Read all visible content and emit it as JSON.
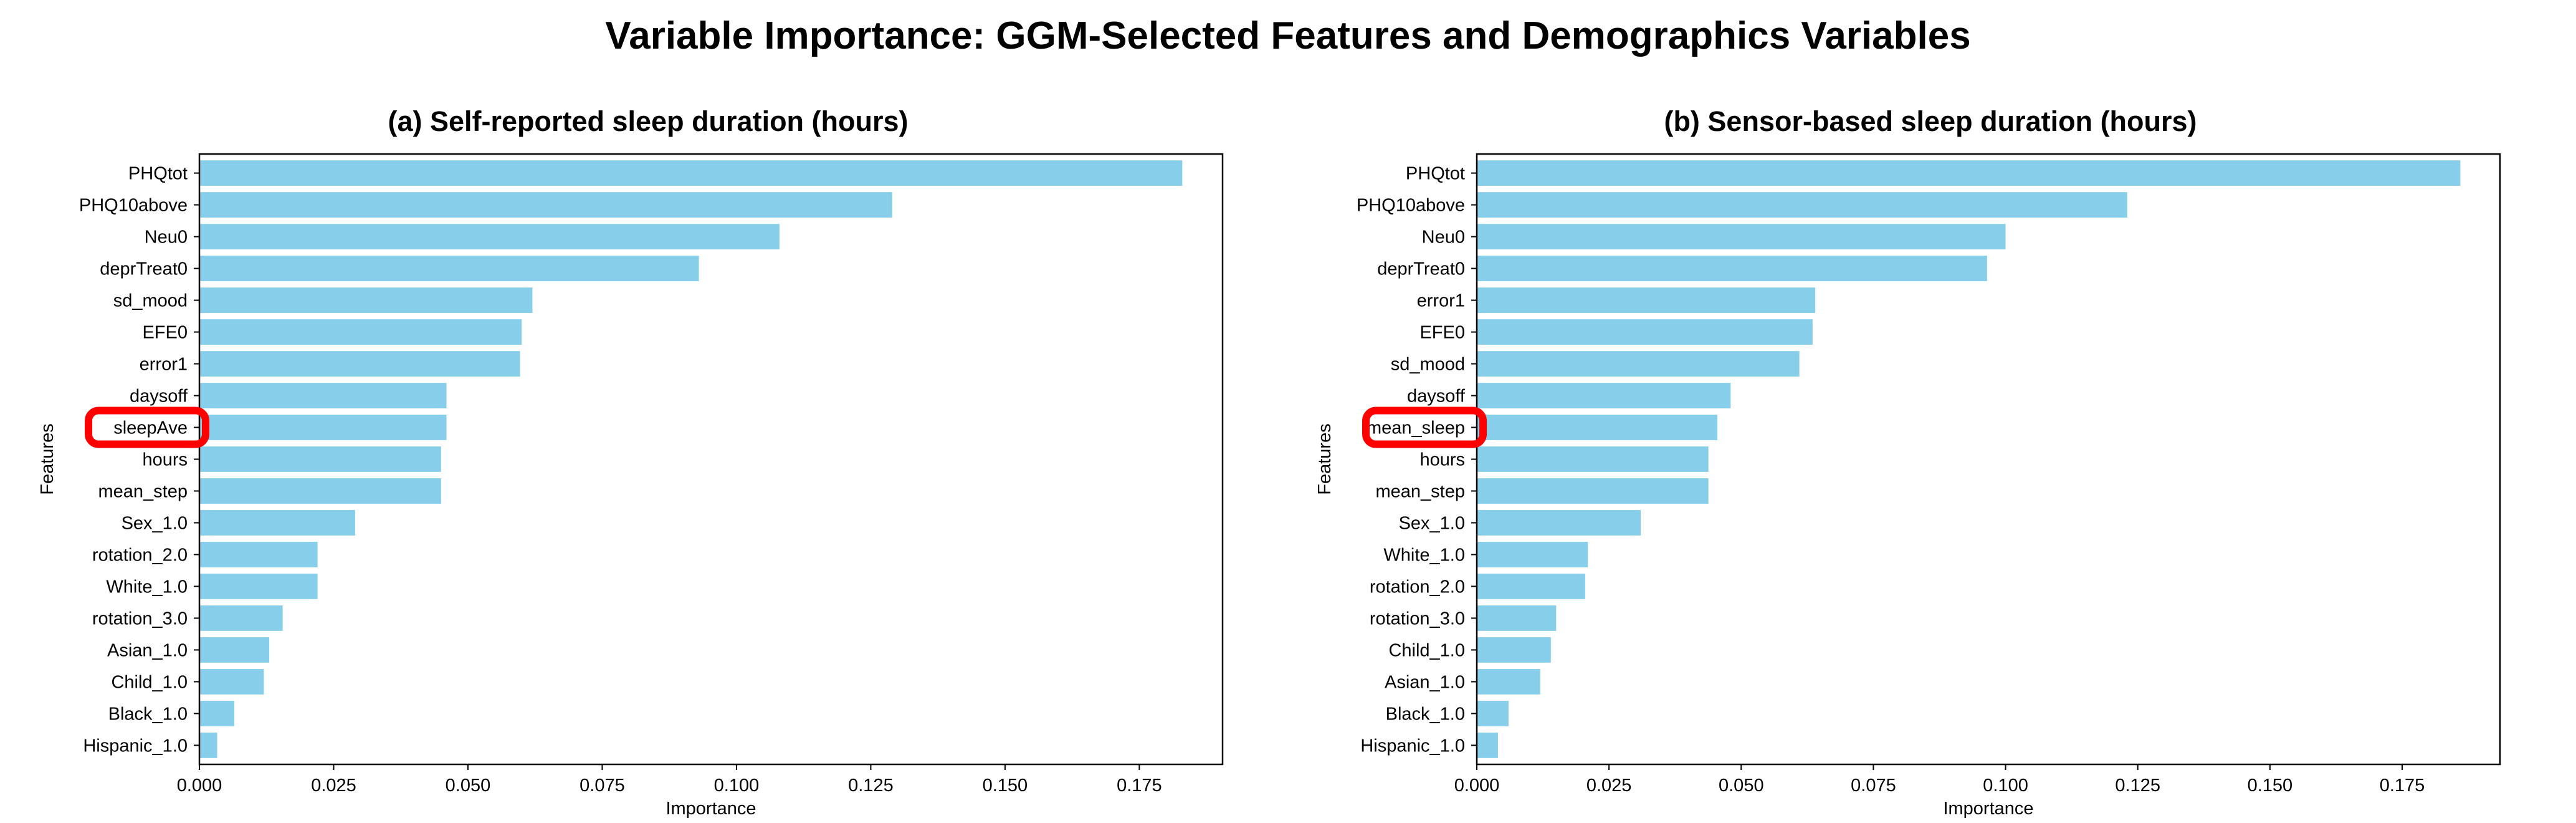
{
  "title": "Variable Importance: GGM-Selected Features and Demographics Variables",
  "colors": {
    "bar": "#87CEEB",
    "highlight": "#ff0000",
    "axis": "#000000"
  },
  "chart_data": [
    {
      "type": "bar",
      "orientation": "horizontal",
      "title": "(a)  Self-reported sleep duration (hours)",
      "xlabel": "Importance",
      "ylabel": "Features",
      "xlim": [
        0,
        0.1905
      ],
      "xticks": [
        0.0,
        0.025,
        0.05,
        0.075,
        0.1,
        0.125,
        0.15,
        0.175
      ],
      "xtick_labels": [
        "0.000",
        "0.025",
        "0.050",
        "0.075",
        "0.100",
        "0.125",
        "0.150",
        "0.175"
      ],
      "categories": [
        "PHQtot",
        "PHQ10above",
        "Neu0",
        "deprTreat0",
        "sd_mood",
        "EFE0",
        "error1",
        "daysoff",
        "sleepAve",
        "hours",
        "mean_step",
        "Sex_1.0",
        "rotation_2.0",
        "White_1.0",
        "rotation_3.0",
        "Asian_1.0",
        "Child_1.0",
        "Black_1.0",
        "Hispanic_1.0"
      ],
      "values": [
        0.183,
        0.129,
        0.108,
        0.093,
        0.062,
        0.06,
        0.0597,
        0.046,
        0.046,
        0.045,
        0.045,
        0.029,
        0.022,
        0.022,
        0.0155,
        0.013,
        0.012,
        0.0065,
        0.0033
      ],
      "highlighted": "sleepAve",
      "grid": false
    },
    {
      "type": "bar",
      "orientation": "horizontal",
      "title": "(b) Sensor-based sleep duration (hours)",
      "xlabel": "Importance",
      "ylabel": "Features",
      "xlim": [
        0,
        0.1935
      ],
      "xticks": [
        0.0,
        0.025,
        0.05,
        0.075,
        0.1,
        0.125,
        0.15,
        0.175
      ],
      "xtick_labels": [
        "0.000",
        "0.025",
        "0.050",
        "0.075",
        "0.100",
        "0.125",
        "0.150",
        "0.175"
      ],
      "categories": [
        "PHQtot",
        "PHQ10above",
        "Neu0",
        "deprTreat0",
        "error1",
        "EFE0",
        "sd_mood",
        "daysoff",
        "mean_sleep",
        "hours",
        "mean_step",
        "Sex_1.0",
        "White_1.0",
        "rotation_2.0",
        "rotation_3.0",
        "Child_1.0",
        "Asian_1.0",
        "Black_1.0",
        "Hispanic_1.0"
      ],
      "values": [
        0.186,
        0.123,
        0.1,
        0.0965,
        0.064,
        0.0635,
        0.061,
        0.048,
        0.0455,
        0.0438,
        0.0438,
        0.031,
        0.021,
        0.0205,
        0.015,
        0.014,
        0.012,
        0.006,
        0.004
      ],
      "highlighted": "mean_sleep",
      "grid": false
    }
  ]
}
